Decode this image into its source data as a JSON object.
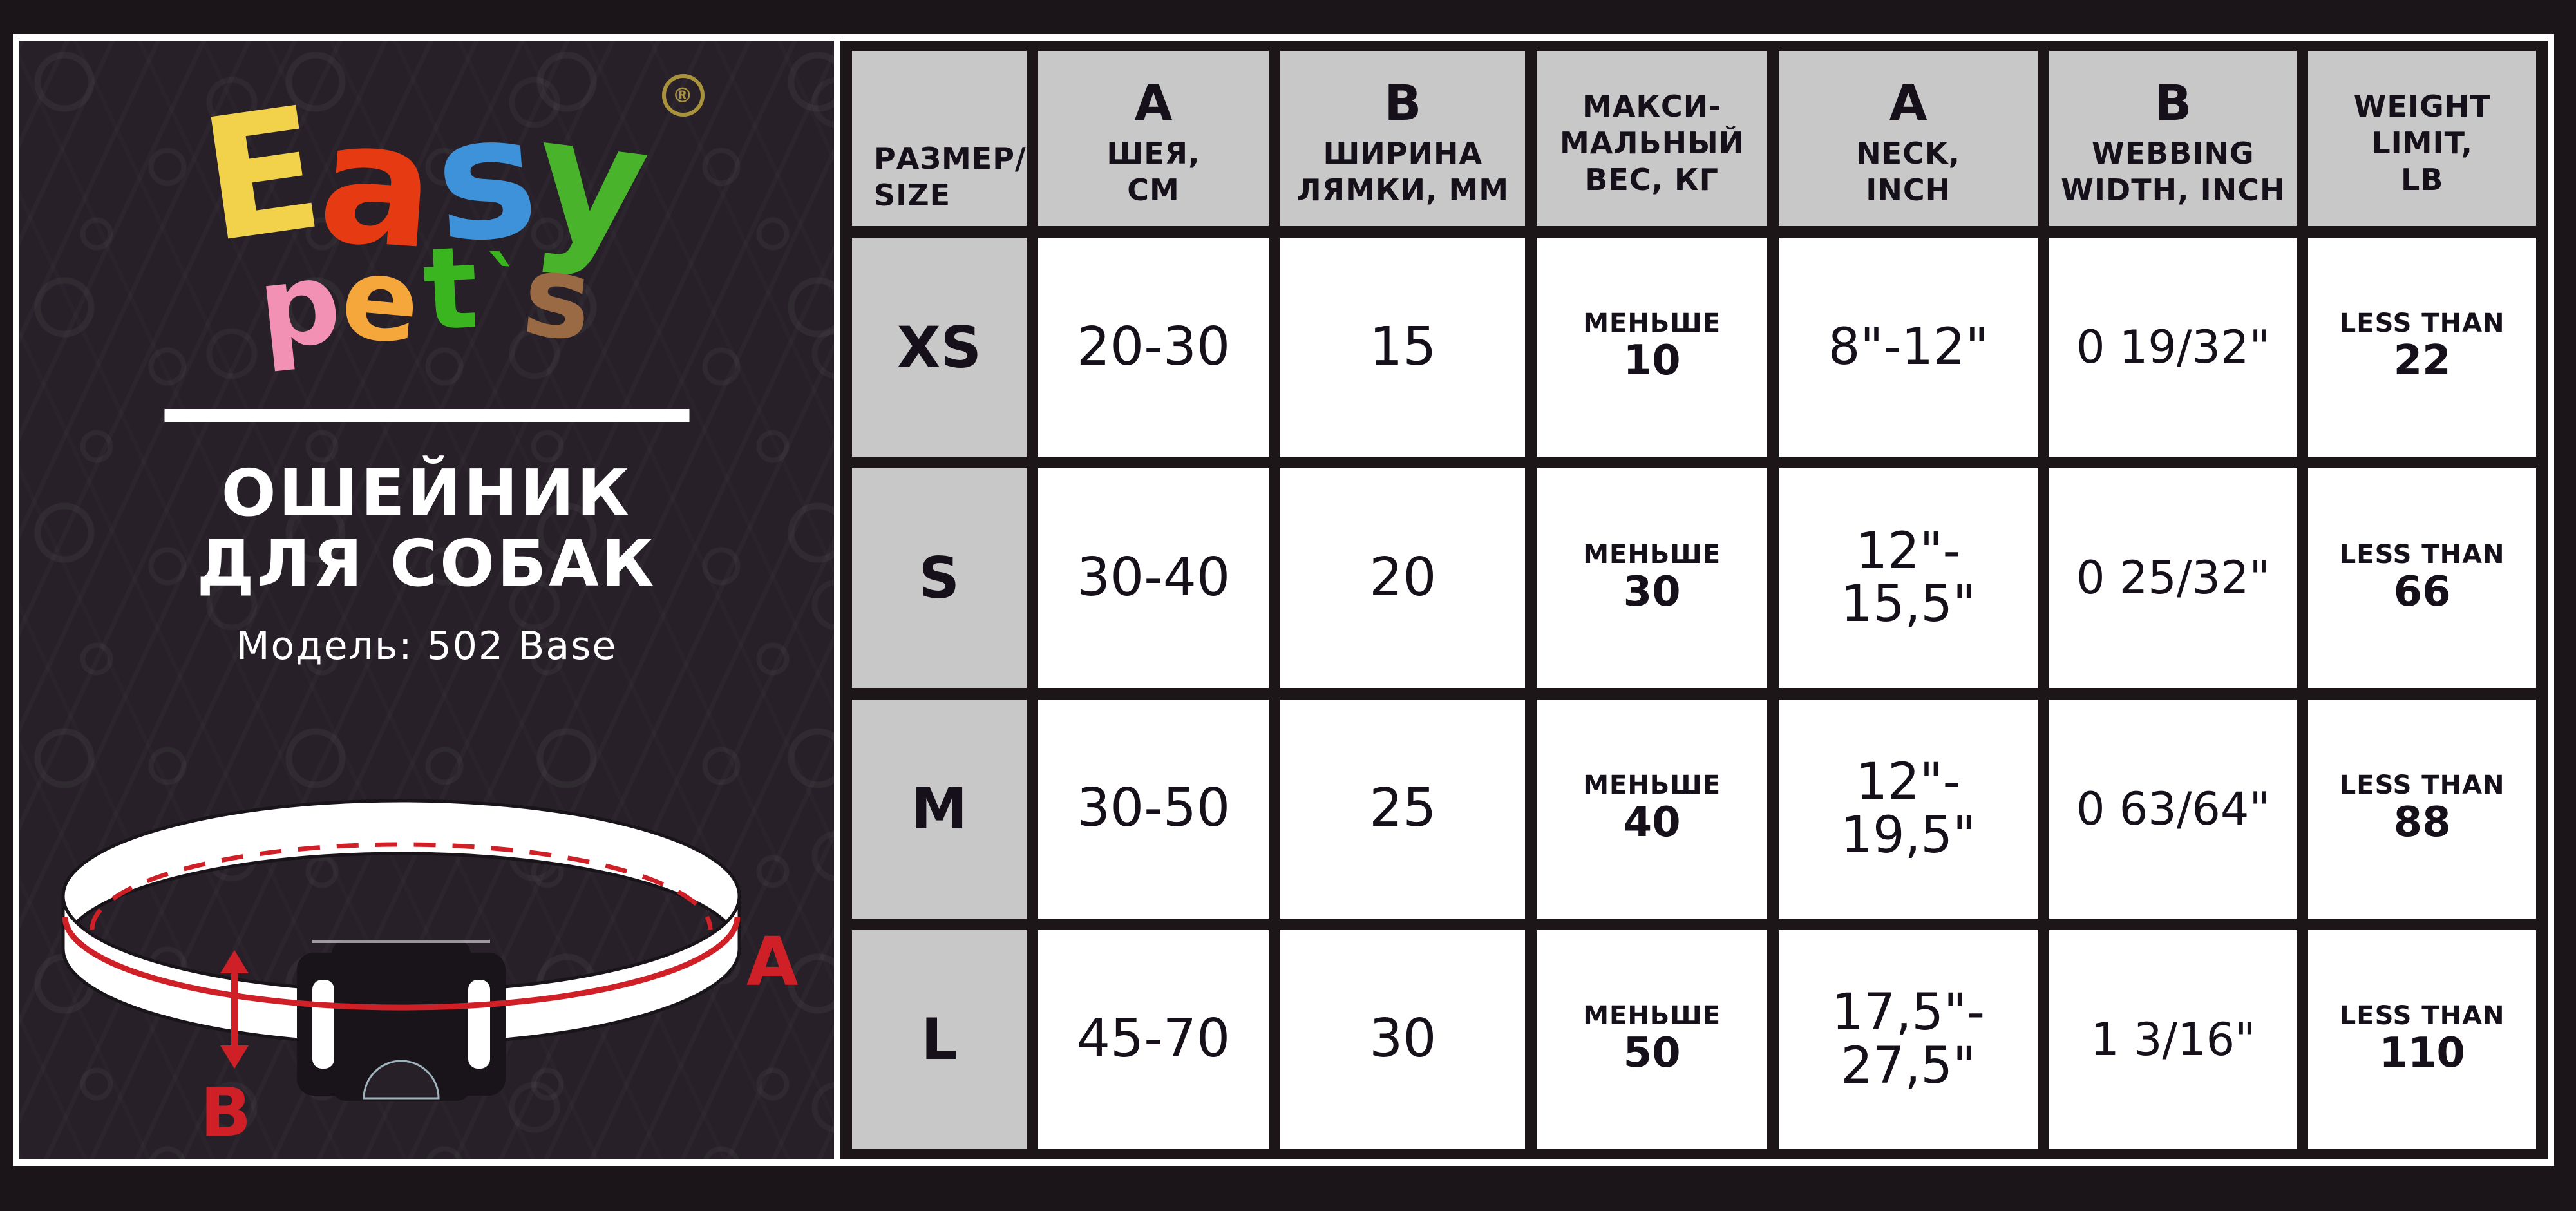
{
  "brand": {
    "name_line1": [
      {
        "ch": "E",
        "color": "#f2d24b"
      },
      {
        "ch": "a",
        "color": "#e63a12"
      },
      {
        "ch": "s",
        "color": "#3e92d9"
      },
      {
        "ch": "y",
        "color": "#49b32b"
      }
    ],
    "registered_mark": "®",
    "name_line2": [
      {
        "ch": "p",
        "color": "#f291b4"
      },
      {
        "ch": "e",
        "color": "#f5a73c"
      },
      {
        "ch": "t",
        "color": "#3bb51f"
      },
      {
        "ch": "`",
        "color": "#3bb51f"
      },
      {
        "ch": "s",
        "color": "#9a6a45"
      }
    ]
  },
  "left_panel": {
    "product_title_line1": "ОШЕЙНИК",
    "product_title_line2": "ДЛЯ СОБАК",
    "model_label": "Модель: 502 Base",
    "measure_a_label": "A",
    "measure_b_label": "B"
  },
  "chart_data": {
    "type": "table",
    "columns": [
      {
        "key": "size",
        "big": "",
        "lines": [
          "РАЗМЕР/",
          "SIZE"
        ]
      },
      {
        "key": "neck_cm",
        "big": "A",
        "lines": [
          "ШЕЯ,",
          "СМ"
        ]
      },
      {
        "key": "strap_width_mm",
        "big": "B",
        "lines": [
          "ШИРИНА",
          "ЛЯМКИ, ММ"
        ]
      },
      {
        "key": "max_weight_kg",
        "big": "",
        "lines": [
          "МАКСИ-",
          "МАЛЬНЫЙ",
          "ВЕС, КГ"
        ]
      },
      {
        "key": "neck_inch",
        "big": "A",
        "lines": [
          "NECK,",
          "INCH"
        ]
      },
      {
        "key": "webbing_width_inch",
        "big": "B",
        "lines": [
          "WEBBING",
          "WIDTH, INCH"
        ]
      },
      {
        "key": "weight_limit_lb",
        "big": "",
        "lines": [
          "WEIGHT",
          "LIMIT,",
          "LB"
        ]
      }
    ],
    "rows": [
      {
        "size": "XS",
        "neck_cm": [
          "20-30"
        ],
        "strap_width_mm": [
          "15"
        ],
        "max_weight_kg": {
          "prefix": "МЕНЬШЕ",
          "value": "10"
        },
        "neck_inch": [
          "8\"-12\""
        ],
        "webbing_width_inch": [
          "0 19/32\""
        ],
        "weight_limit_lb": {
          "prefix": "LESS THAN",
          "value": "22"
        }
      },
      {
        "size": "S",
        "neck_cm": [
          "30-40"
        ],
        "strap_width_mm": [
          "20"
        ],
        "max_weight_kg": {
          "prefix": "МЕНЬШЕ",
          "value": "30"
        },
        "neck_inch": [
          "12\"-",
          "15,5\""
        ],
        "webbing_width_inch": [
          "0 25/32\""
        ],
        "weight_limit_lb": {
          "prefix": "LESS THAN",
          "value": "66"
        }
      },
      {
        "size": "M",
        "neck_cm": [
          "30-50"
        ],
        "strap_width_mm": [
          "25"
        ],
        "max_weight_kg": {
          "prefix": "МЕНЬШЕ",
          "value": "40"
        },
        "neck_inch": [
          "12\"-",
          "19,5\""
        ],
        "webbing_width_inch": [
          "0 63/64\""
        ],
        "weight_limit_lb": {
          "prefix": "LESS THAN",
          "value": "88"
        }
      },
      {
        "size": "L",
        "neck_cm": [
          "45-70"
        ],
        "strap_width_mm": [
          "30"
        ],
        "max_weight_kg": {
          "prefix": "МЕНЬШЕ",
          "value": "50"
        },
        "neck_inch": [
          "17,5\"-",
          "27,5\""
        ],
        "webbing_width_inch": [
          "1 3/16\""
        ],
        "weight_limit_lb": {
          "prefix": "LESS THAN",
          "value": "110"
        }
      }
    ]
  },
  "colors": {
    "background_black": "#1b151a",
    "panel_background": "#272028",
    "header_gray": "#c9c8c8",
    "cell_white": "#ffffff",
    "accent_red": "#d02027",
    "text_ink": "#15101a",
    "registered_gold": "#a8923c"
  }
}
